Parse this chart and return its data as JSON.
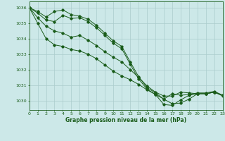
{
  "title": "Graphe pression niveau de la mer (hPa)",
  "background_color": "#cce8e8",
  "grid_color": "#aacccc",
  "line_color": "#1a5c1a",
  "xlim": [
    0,
    23
  ],
  "ylim": [
    1029.4,
    1036.4
  ],
  "yticks": [
    1030,
    1031,
    1032,
    1033,
    1034,
    1035,
    1036
  ],
  "xticks": [
    0,
    1,
    2,
    3,
    4,
    5,
    6,
    7,
    8,
    9,
    10,
    11,
    12,
    13,
    14,
    15,
    16,
    17,
    18,
    19,
    20,
    21,
    22,
    23
  ],
  "line1": [
    1036.0,
    1035.75,
    1035.4,
    1035.75,
    1035.85,
    1035.55,
    1035.45,
    1035.25,
    1034.85,
    1034.35,
    1033.85,
    1033.5,
    1032.5,
    1031.55,
    1030.85,
    1030.5,
    1030.1,
    1030.45,
    1030.35,
    1030.4,
    1030.5,
    1030.5,
    1030.6,
    1030.35
  ],
  "line2": [
    1036.0,
    1035.65,
    1035.2,
    1035.1,
    1035.5,
    1035.3,
    1035.35,
    1035.1,
    1034.7,
    1034.2,
    1033.7,
    1033.35,
    1032.35,
    1031.4,
    1030.75,
    1030.4,
    1029.75,
    1029.7,
    1030.05,
    1030.35,
    1030.45,
    1030.45,
    1030.55,
    1030.3
  ],
  "line3": [
    1036.0,
    1035.35,
    1034.8,
    1034.5,
    1034.35,
    1034.1,
    1034.2,
    1033.9,
    1033.55,
    1033.15,
    1032.8,
    1032.5,
    1032.0,
    1031.5,
    1030.95,
    1030.55,
    1030.3,
    1030.3,
    1030.55,
    1030.5,
    1030.45,
    1030.45,
    1030.55,
    1030.35
  ],
  "line4": [
    1036.0,
    1035.0,
    1034.0,
    1033.6,
    1033.5,
    1033.3,
    1033.2,
    1033.0,
    1032.7,
    1032.3,
    1031.9,
    1031.6,
    1031.35,
    1031.05,
    1030.7,
    1030.4,
    1030.1,
    1029.8,
    1029.85,
    1030.1,
    1030.45,
    1030.45,
    1030.55,
    1030.35
  ]
}
